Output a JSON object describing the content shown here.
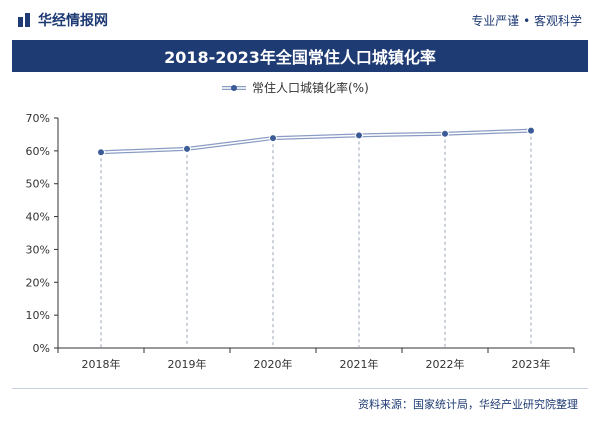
{
  "header": {
    "brand": "华经情报网",
    "slogan": "专业严谨 • 客观科学"
  },
  "footer": {
    "source": "资料来源：国家统计局，华经产业研究院整理"
  },
  "chart_data": {
    "type": "line",
    "title": "2018-2023年全国常住人口城镇化率",
    "categories": [
      "2018年",
      "2019年",
      "2020年",
      "2021年",
      "2022年",
      "2023年"
    ],
    "series": [
      {
        "name": "常住人口城镇化率(%)",
        "values": [
          59.58,
          60.6,
          63.89,
          64.72,
          65.22,
          66.16
        ]
      }
    ],
    "y_ticks": [
      "0%",
      "10%",
      "20%",
      "30%",
      "40%",
      "50%",
      "60%",
      "70%"
    ],
    "ylim": [
      0,
      70
    ],
    "legend_position": "top",
    "grid": false,
    "colors": {
      "line": "#8a9cc4",
      "marker": "#3b5b96",
      "axis": "#333333",
      "dash": "#9aa4b8"
    }
  }
}
